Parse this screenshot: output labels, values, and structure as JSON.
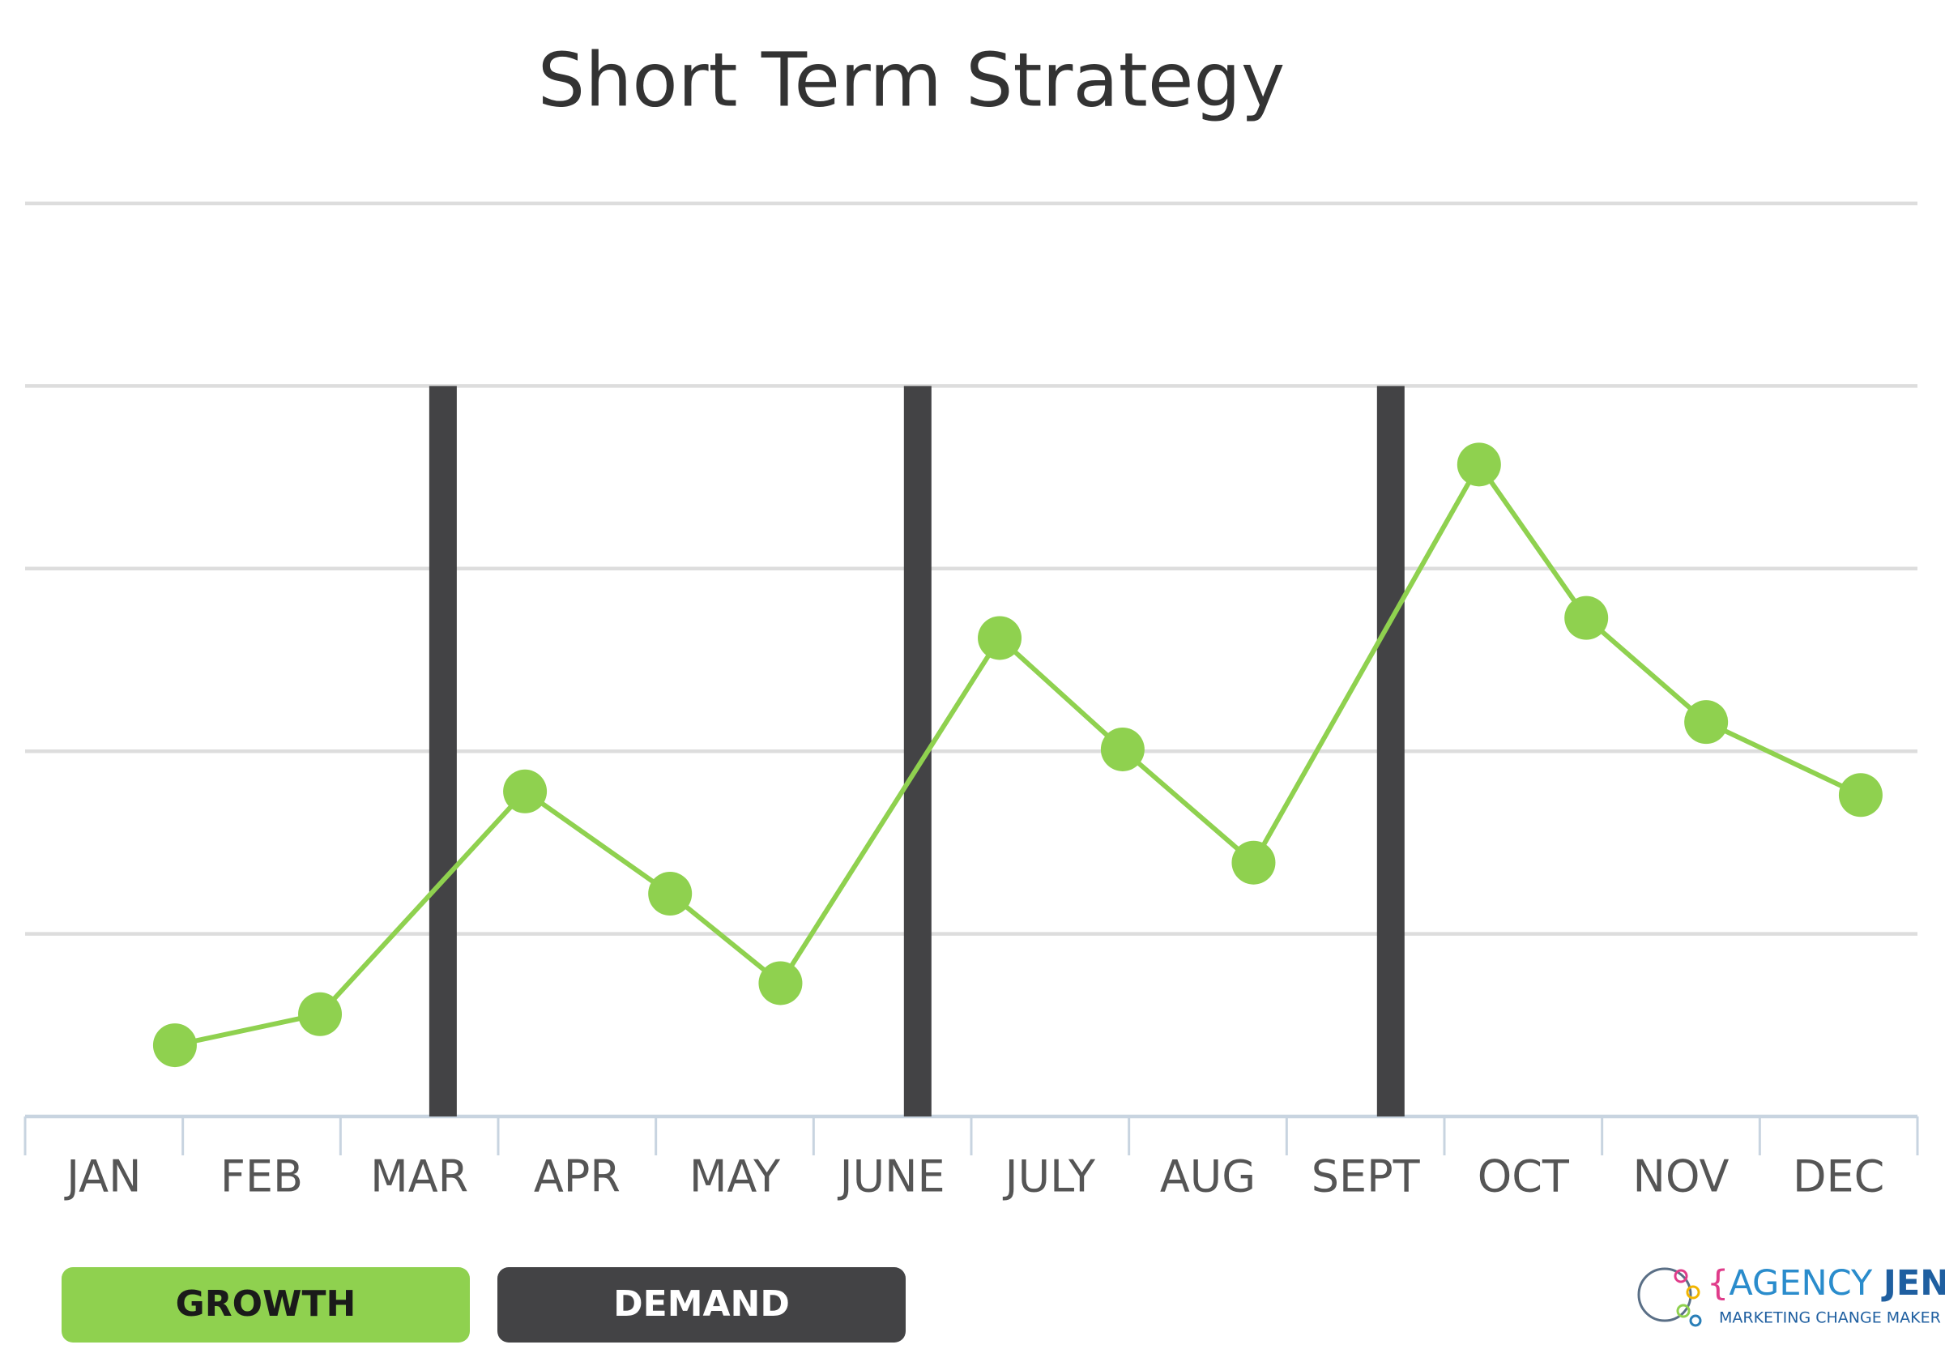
{
  "chart_data": {
    "type": "line",
    "title": "Short Term Strategy",
    "categories": [
      "JAN",
      "FEB",
      "MAR",
      "APR",
      "MAY",
      "JUNE",
      "JULY",
      "AUG",
      "SEPT",
      "OCT",
      "NOV",
      "DEC"
    ],
    "xlim": [
      0,
      12
    ],
    "ylim": [
      0,
      5
    ],
    "yticks": [
      0,
      1,
      2,
      3,
      4,
      5
    ],
    "grid": true,
    "series": [
      {
        "name": "GROWTH",
        "type": "line",
        "color": "#8fd14f",
        "x": [
          0.95,
          1.87,
          3.17,
          4.09,
          4.79,
          6.18,
          6.96,
          7.79,
          9.22,
          9.9,
          10.66,
          11.64
        ],
        "values": [
          0.39,
          0.56,
          1.78,
          1.22,
          0.73,
          2.62,
          2.01,
          1.39,
          3.57,
          2.73,
          2.16,
          1.76
        ]
      },
      {
        "name": "DEMAND",
        "type": "bar",
        "color": "#434345",
        "x": [
          2.65,
          5.66,
          8.66
        ],
        "values": [
          4,
          4,
          4
        ]
      }
    ]
  },
  "logo": {
    "open": "{",
    "word1": "AGENCY",
    "word2": "JEN",
    "close": "}",
    "tagline": "MARKETING CHANGE MAKER"
  }
}
